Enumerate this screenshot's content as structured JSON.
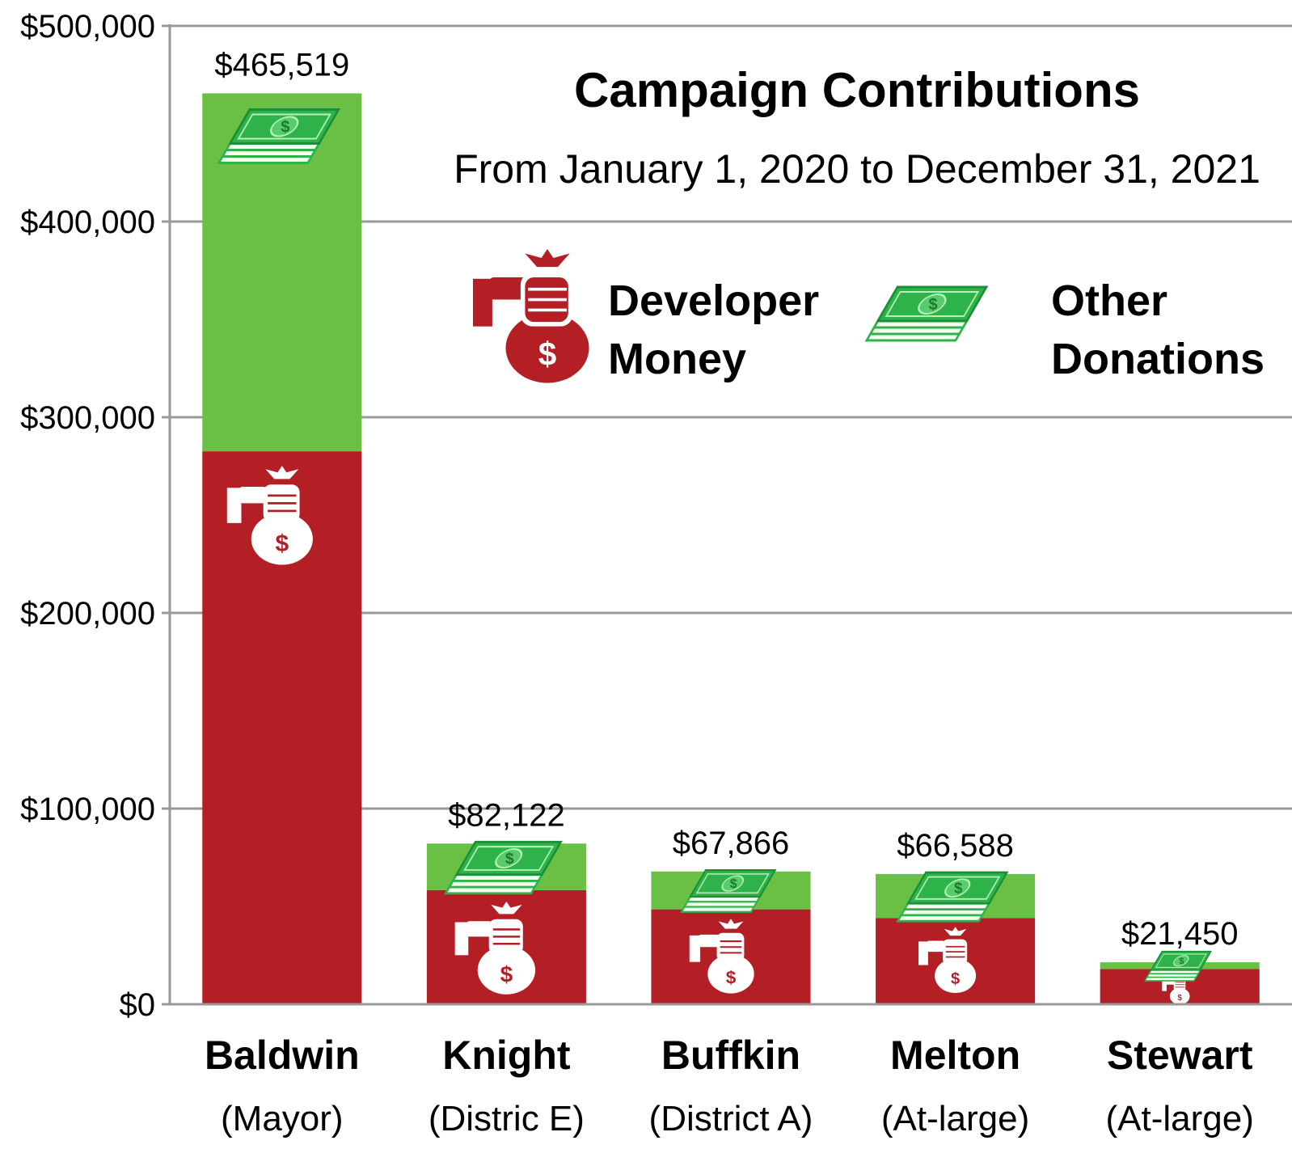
{
  "colors": {
    "developer": "#b41f25",
    "other": "#6abf45",
    "bill": "#2db34a",
    "grid": "#999999"
  },
  "chart_data": {
    "type": "bar",
    "stacked": true,
    "title": "Campaign Contributions",
    "subtitle": "From January 1, 2020 to December 31, 2021",
    "categories": [
      "Baldwin",
      "Knight",
      "Buffkin",
      "Melton",
      "Stewart"
    ],
    "category_roles": [
      "(Mayor)",
      "(Distric E)",
      "(District A)",
      "(At-large)",
      "(At-large)"
    ],
    "series": [
      {
        "name": "Developer Money",
        "values": [
          282600,
          58300,
          48500,
          44000,
          18000
        ]
      },
      {
        "name": "Other Donations",
        "values": [
          182919,
          23822,
          19366,
          22588,
          3450
        ]
      }
    ],
    "totals": [
      465519,
      82122,
      67866,
      66588,
      21450
    ],
    "total_labels": [
      "$465,519",
      "$82,122",
      "$67,866",
      "$66,588",
      "$21,450"
    ],
    "ylim": [
      0,
      500000
    ],
    "yticks": [
      0,
      100000,
      200000,
      300000,
      400000,
      500000
    ],
    "ytick_labels": [
      "$0",
      "$100,000",
      "$200,000",
      "$300,000",
      "$400,000",
      "$500,000"
    ],
    "grid": true,
    "legend": {
      "position": "top-right",
      "developer_lines": [
        "Developer",
        "Money"
      ],
      "other_lines": [
        "Other",
        "Donations"
      ]
    },
    "icons": [
      "money-bag-icon",
      "cash-stack-icon"
    ]
  }
}
